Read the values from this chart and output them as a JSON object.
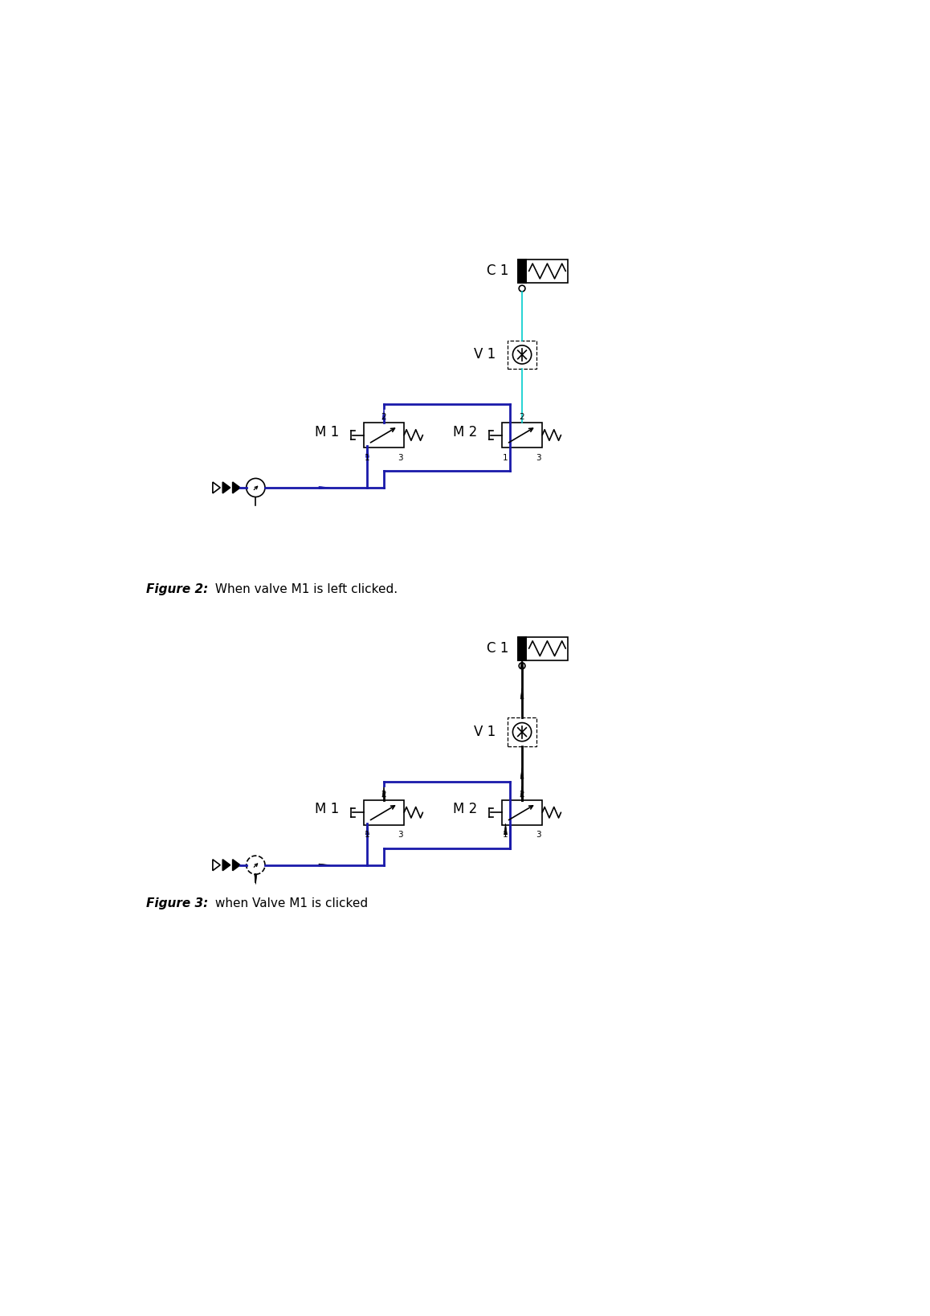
{
  "bg_color": "#ffffff",
  "blue": "#1a1aaa",
  "cyan": "#00cccc",
  "black": "#000000",
  "fig_width": 11.58,
  "fig_height": 16.38,
  "dpi": 100,
  "xlim": [
    0,
    11.58
  ],
  "ylim": [
    0,
    16.38
  ],
  "fig1_caption_bold": "Figure 2:",
  "fig1_caption_rest": " When valve M1 is left clicked.",
  "fig2_caption_bold": "Figure 3:",
  "fig2_caption_rest": " when Valve M1 is clicked",
  "label_C1": "C 1",
  "label_V1": "V 1",
  "label_M1": "M 1",
  "label_M2": "M 2",
  "lw_thin": 1.2,
  "lw_thick": 2.0
}
